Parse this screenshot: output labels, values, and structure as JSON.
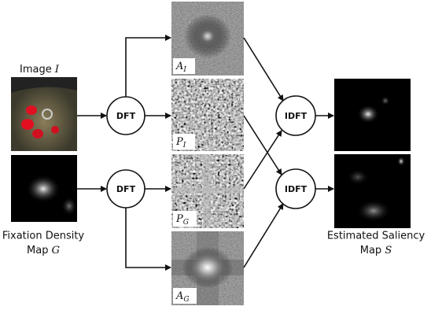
{
  "input_image": {
    "label": "Image",
    "variable": "I"
  },
  "fixation_map": {
    "label": "Fixation Density",
    "label_line2": "Map",
    "variable": "G"
  },
  "operations": [
    "DFT",
    "DFT",
    "IDFT",
    "IDFT"
  ],
  "panels": [
    {
      "symbol": "A",
      "subscript": "I"
    },
    {
      "symbol": "P",
      "subscript": "I"
    },
    {
      "symbol": "P",
      "subscript": "G"
    },
    {
      "symbol": "A",
      "subscript": "G"
    }
  ],
  "output": {
    "label": "Estimated Saliency",
    "label_line2": "Map",
    "variable": "S"
  }
}
